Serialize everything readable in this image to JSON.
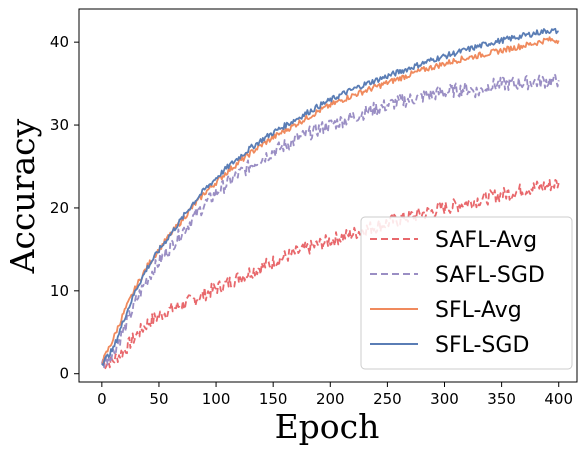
{
  "chart_data": {
    "type": "line",
    "xlabel": "Epoch",
    "ylabel": "Accuracy",
    "xlim": [
      -20,
      416
    ],
    "ylim": [
      -1,
      44
    ],
    "xticks": [
      0,
      50,
      100,
      150,
      200,
      250,
      300,
      350,
      400
    ],
    "yticks": [
      0,
      10,
      20,
      30,
      40
    ],
    "grid": false,
    "legend_position": "lower-right",
    "x": [
      0,
      10,
      20,
      30,
      40,
      50,
      60,
      70,
      80,
      90,
      100,
      110,
      120,
      130,
      140,
      150,
      160,
      170,
      180,
      190,
      200,
      210,
      220,
      230,
      240,
      250,
      260,
      270,
      280,
      290,
      300,
      310,
      320,
      330,
      340,
      350,
      360,
      370,
      380,
      390,
      400
    ],
    "series": [
      {
        "name": "SAFL-Avg",
        "color": "#e8686c",
        "dash": true,
        "values": [
          1.2,
          1.6,
          2.9,
          4.6,
          6.1,
          7.0,
          7.7,
          8.3,
          8.9,
          9.6,
          10.3,
          10.9,
          11.6,
          12.3,
          12.9,
          13.5,
          14.1,
          14.6,
          15.1,
          15.6,
          16.1,
          16.5,
          16.9,
          17.4,
          17.8,
          18.2,
          18.6,
          19.0,
          19.3,
          19.6,
          20.0,
          20.3,
          20.6,
          21.0,
          21.3,
          21.6,
          21.9,
          22.2,
          22.5,
          22.7,
          23.0
        ]
      },
      {
        "name": "SAFL-SGD",
        "color": "#9a8ec4",
        "dash": true,
        "values": [
          1.2,
          2.5,
          5.5,
          8.8,
          11.5,
          13.5,
          15.3,
          17.1,
          18.8,
          20.4,
          21.8,
          23.0,
          24.1,
          25.1,
          26.0,
          26.8,
          27.5,
          28.2,
          28.9,
          29.5,
          30.0,
          30.5,
          31.0,
          31.5,
          32.0,
          32.4,
          32.8,
          33.1,
          33.4,
          33.7,
          34.0,
          34.2,
          34.4,
          34.0,
          34.8,
          34.9,
          35.0,
          35.1,
          35.2,
          35.3,
          35.4
        ]
      },
      {
        "name": "SFL-Avg",
        "color": "#f08a5d",
        "dash": false,
        "values": [
          1.3,
          4.2,
          7.6,
          10.5,
          13.0,
          15.0,
          16.8,
          18.5,
          20.2,
          21.8,
          23.1,
          24.4,
          25.5,
          26.6,
          27.6,
          28.5,
          29.3,
          30.1,
          30.9,
          31.7,
          32.4,
          33.0,
          33.6,
          34.1,
          34.6,
          35.1,
          35.6,
          36.1,
          36.6,
          37.0,
          37.4,
          37.8,
          38.1,
          38.4,
          38.7,
          39.0,
          39.3,
          39.6,
          39.9,
          40.3,
          40.2
        ]
      },
      {
        "name": "SFL-SGD",
        "color": "#5a7db5",
        "dash": false,
        "values": [
          1.2,
          3.0,
          6.8,
          10.2,
          12.8,
          14.9,
          16.8,
          18.7,
          20.6,
          22.2,
          23.6,
          24.9,
          26.1,
          27.2,
          28.2,
          29.1,
          29.9,
          30.7,
          31.5,
          32.3,
          33.0,
          33.7,
          34.3,
          34.9,
          35.4,
          35.9,
          36.4,
          36.9,
          37.4,
          37.9,
          38.3,
          38.7,
          39.1,
          39.5,
          39.9,
          40.2,
          40.5,
          40.8,
          41.1,
          41.4,
          41.3
        ]
      }
    ]
  }
}
